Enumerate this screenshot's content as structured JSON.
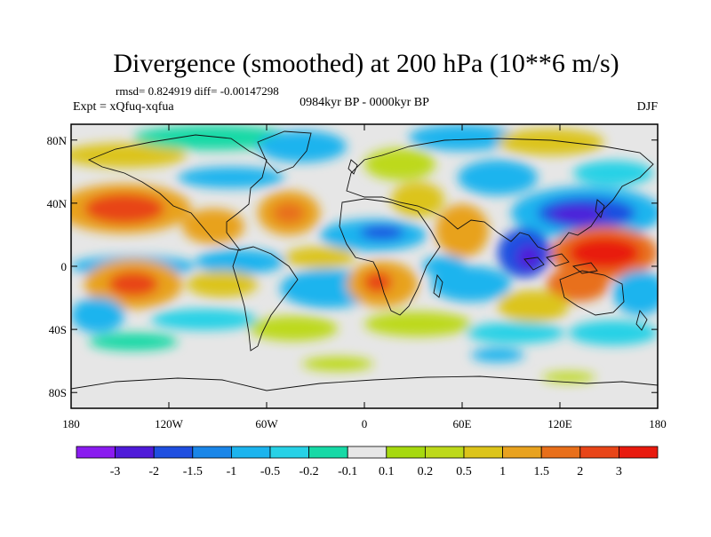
{
  "chart_data": {
    "type": "heatmap",
    "title": "Divergence (smoothed) at 200 hPa (10**6 m/s)",
    "stats_line": "rmsd= 0.824919 diff= -0.00147298",
    "experiment": "Expt = xQfuq-xqfua",
    "period": "0984kyr BP - 0000kyr BP",
    "season": "DJF",
    "x_range": [
      -180,
      180
    ],
    "y_range": [
      -90,
      90
    ],
    "x_ticks": [
      {
        "value": -180,
        "label": "180"
      },
      {
        "value": -120,
        "label": "120W"
      },
      {
        "value": -60,
        "label": "60W"
      },
      {
        "value": 0,
        "label": "0"
      },
      {
        "value": 60,
        "label": "60E"
      },
      {
        "value": 120,
        "label": "120E"
      },
      {
        "value": 180,
        "label": "180"
      }
    ],
    "y_ticks": [
      {
        "value": 80,
        "label": "80N"
      },
      {
        "value": 40,
        "label": "40N"
      },
      {
        "value": 0,
        "label": "0"
      },
      {
        "value": -40,
        "label": "40S"
      },
      {
        "value": -80,
        "label": "80S"
      }
    ],
    "colorbar": {
      "bins": [
        {
          "color": "#8a1cf0",
          "label": ""
        },
        {
          "color": "#4f1bd9",
          "label": "-3"
        },
        {
          "color": "#1f4fe0",
          "label": "-2"
        },
        {
          "color": "#1a86e8",
          "label": "-1.5"
        },
        {
          "color": "#1cb4ee",
          "label": "-1"
        },
        {
          "color": "#27d1e6",
          "label": "-0.5"
        },
        {
          "color": "#17d9a6",
          "label": "-0.2"
        },
        {
          "color": "#e6e6e6",
          "label": "-0.1"
        },
        {
          "color": "#a6d90f",
          "label": "0.1"
        },
        {
          "color": "#bdd91a",
          "label": "0.2"
        },
        {
          "color": "#dcc41a",
          "label": "0.5"
        },
        {
          "color": "#e8a21f",
          "label": "1"
        },
        {
          "color": "#e86f1a",
          "label": "1.5"
        },
        {
          "color": "#e84518",
          "label": "2"
        },
        {
          "color": "#e81a0e",
          "label": "3"
        }
      ]
    },
    "anomaly_field": [
      {
        "lon": -140,
        "lat": 30,
        "value": 2.0
      },
      {
        "lon": -120,
        "lat": -10,
        "value": 1.8
      },
      {
        "lon": -70,
        "lat": 25,
        "value": 1.2
      },
      {
        "lon": -75,
        "lat": 0,
        "value": -1.0
      },
      {
        "lon": -25,
        "lat": 25,
        "value": 1.5
      },
      {
        "lon": -10,
        "lat": 10,
        "value": 1.0
      },
      {
        "lon": 0,
        "lat": -15,
        "value": 1.5
      },
      {
        "lon": 40,
        "lat": 25,
        "value": 1.0
      },
      {
        "lon": 20,
        "lat": 10,
        "value": -1.5
      },
      {
        "lon": 70,
        "lat": -10,
        "value": -1.5
      },
      {
        "lon": 110,
        "lat": 5,
        "value": -3.0
      },
      {
        "lon": 130,
        "lat": 30,
        "value": -2.5
      },
      {
        "lon": 150,
        "lat": 10,
        "value": 3.0
      },
      {
        "lon": 120,
        "lat": -15,
        "value": 2.0
      },
      {
        "lon": 60,
        "lat": 65,
        "value": -1.0
      },
      {
        "lon": -150,
        "lat": -30,
        "value": -0.5
      },
      {
        "lon": -100,
        "lat": -45,
        "value": 0.5
      }
    ]
  }
}
